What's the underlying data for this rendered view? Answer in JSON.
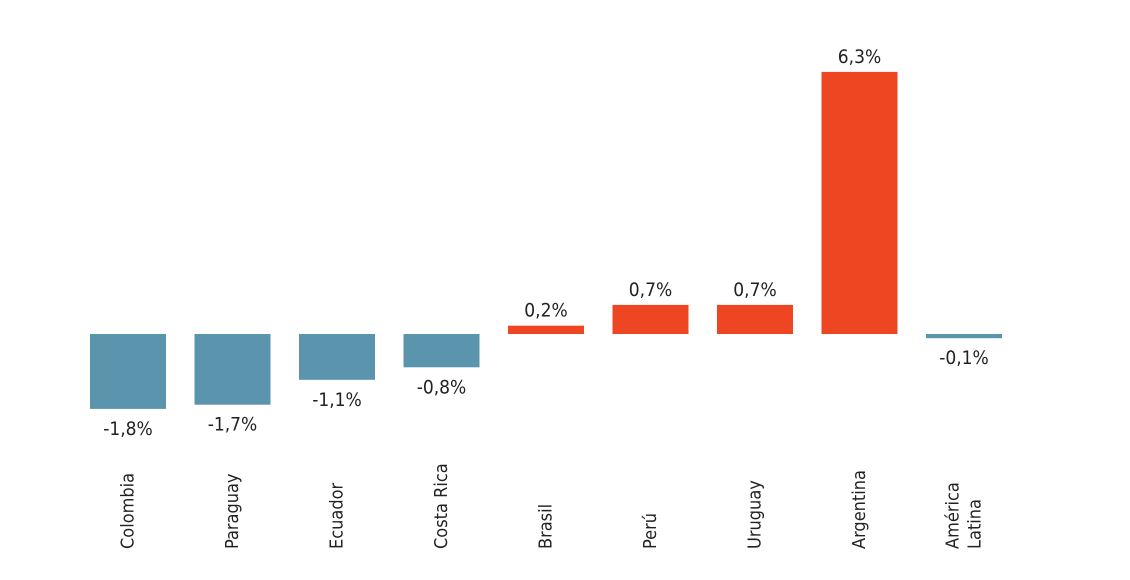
{
  "chart_data": {
    "type": "bar",
    "title": "",
    "xlabel": "",
    "ylabel": "",
    "categories": [
      [
        "Colombia"
      ],
      [
        "Paraguay"
      ],
      [
        "Ecuador"
      ],
      [
        "Costa Rica"
      ],
      [
        "Brasil"
      ],
      [
        "Perú"
      ],
      [
        "Uruguay"
      ],
      [
        "Argentina"
      ],
      [
        "América",
        "Latina"
      ]
    ],
    "values": [
      -1.8,
      -1.7,
      -1.1,
      -0.8,
      0.2,
      0.7,
      0.7,
      6.3,
      -0.1
    ],
    "value_labels": [
      "-1,8%",
      "-1,7%",
      "-1,1%",
      "-0,8%",
      "0,2%",
      "0,7%",
      "0,7%",
      "6,3%",
      "-0,1%"
    ],
    "ylim": [
      -1.8,
      6.3
    ],
    "grid": false,
    "legend": "none",
    "colors": {
      "negative": "#5b95ad",
      "positive": "#ee4523"
    }
  }
}
